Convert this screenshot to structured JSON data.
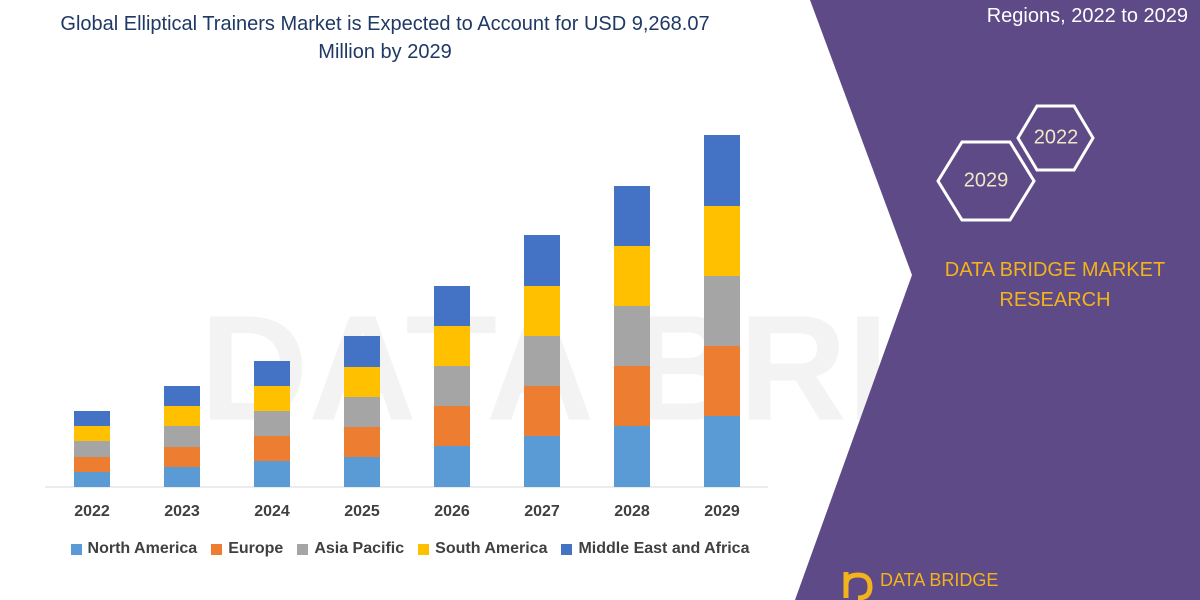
{
  "chart_data": {
    "type": "bar",
    "stacked": true,
    "title": "Global Elliptical Trainers Market is Expected to Account for USD 9,268.07 Million by 2029",
    "categories": [
      "2022",
      "2023",
      "2024",
      "2025",
      "2026",
      "2027",
      "2028",
      "2029"
    ],
    "series": [
      {
        "name": "North America",
        "color": "#5b9bd5",
        "values": [
          15,
          20,
          26,
          30,
          41,
          51,
          61,
          71
        ]
      },
      {
        "name": "Europe",
        "color": "#ed7d31",
        "values": [
          15,
          20,
          25,
          30,
          40,
          50,
          60,
          70
        ]
      },
      {
        "name": "Asia Pacific",
        "color": "#a5a5a5",
        "values": [
          16,
          21,
          25,
          30,
          40,
          50,
          60,
          70
        ]
      },
      {
        "name": "South America",
        "color": "#ffc000",
        "values": [
          15,
          20,
          25,
          30,
          40,
          50,
          60,
          70
        ]
      },
      {
        "name": "Middle East and Africa",
        "color": "#4472c4",
        "values": [
          15,
          20,
          25,
          31,
          40,
          51,
          60,
          71
        ]
      }
    ],
    "legend": "bottom",
    "grid": false
  },
  "panel": {
    "subtitle": "Regions, 2022 to 2029",
    "badges": [
      "2022",
      "2029"
    ],
    "brand": "DATA BRIDGE MARKET RESEARCH",
    "logo": "DATA BRIDGE"
  }
}
